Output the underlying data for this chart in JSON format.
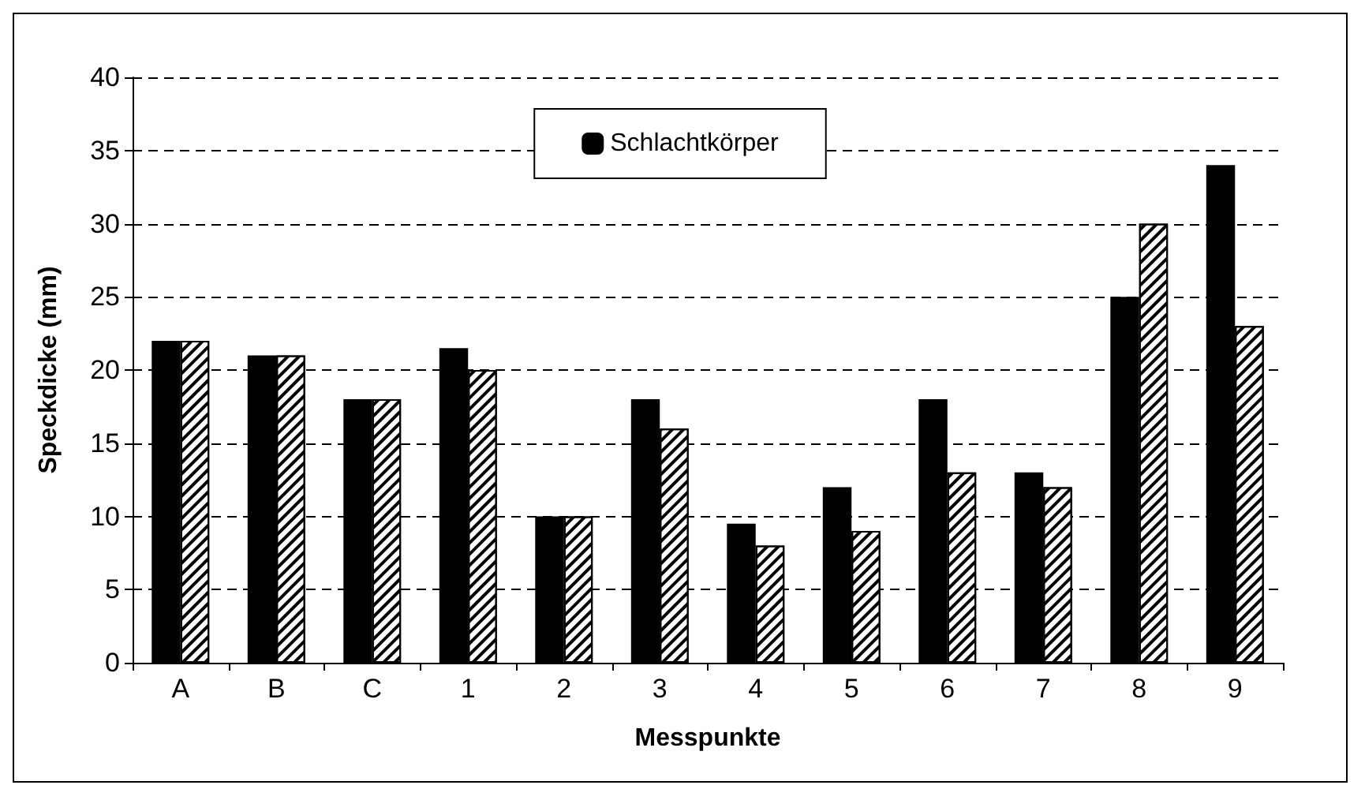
{
  "chart_data": {
    "type": "bar",
    "xlabel": "Messpunkte",
    "ylabel": "Speckdicke (mm)",
    "categories": [
      "A",
      "B",
      "C",
      "1",
      "2",
      "3",
      "4",
      "5",
      "6",
      "7",
      "8",
      "9"
    ],
    "series": [
      {
        "name": "Schlachtkörper",
        "color": "#000000",
        "values": [
          22,
          21,
          18,
          21.5,
          10,
          18,
          9.5,
          12,
          18,
          13,
          25,
          34
        ]
      },
      {
        "color": "#ffffff",
        "values": [
          22,
          21,
          18,
          20,
          10,
          16,
          8,
          9,
          13,
          12,
          30,
          23
        ]
      }
    ],
    "ylim": [
      0,
      40
    ],
    "yticks": [
      0,
      5,
      10,
      15,
      20,
      25,
      30,
      35,
      40
    ],
    "grid": "y",
    "legend": "top"
  }
}
